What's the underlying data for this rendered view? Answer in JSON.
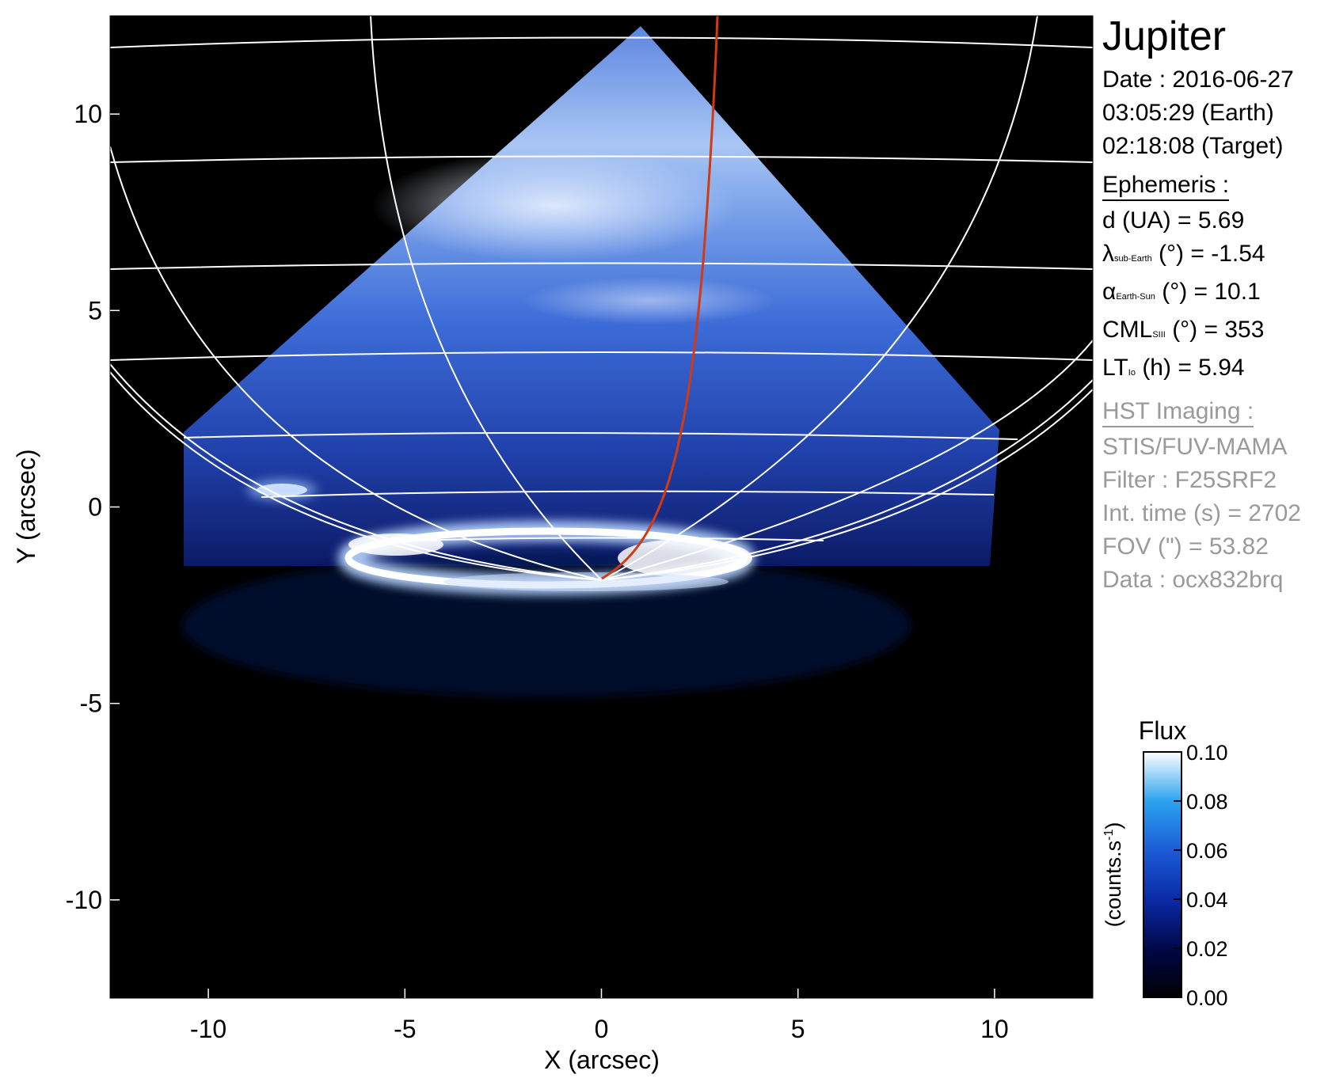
{
  "chart_data": {
    "type": "heatmap",
    "xlabel": "X (arcsec)",
    "ylabel": "Y (arcsec)",
    "xlim": [
      -12.5,
      12.5
    ],
    "ylim": [
      -12.5,
      12.5
    ],
    "xticks": [
      "-10",
      "-5",
      "0",
      "5",
      "10"
    ],
    "yticks": [
      "10",
      "5",
      "0",
      "-5",
      "-10"
    ],
    "xtick_values": [
      -10,
      -5,
      0,
      5,
      10
    ],
    "ytick_values": [
      10,
      5,
      0,
      -5,
      -10
    ],
    "colorbar": {
      "title": "Flux",
      "unit_base": "(counts.s",
      "unit_sup": "-1",
      "unit_end": ")",
      "range": [
        0.0,
        0.1
      ],
      "ticks": [
        "0.10",
        "0.08",
        "0.06",
        "0.04",
        "0.02",
        "0.00"
      ],
      "tick_values": [
        0.1,
        0.08,
        0.06,
        0.04,
        0.02,
        0.0
      ]
    }
  },
  "info": {
    "title": "Jupiter",
    "date": "Date : 2016-06-27",
    "time_earth": "03:05:29 (Earth)",
    "time_target": "02:18:08 (Target)",
    "ephemeris_header": "Ephemeris :",
    "d": "d (UA)    = 5.69",
    "lambda_sym": "λ",
    "lambda_sub": "sub-Earth",
    "lambda_rest": " (°) = -1.54",
    "alpha_sym": "α",
    "alpha_sub": "Earth-Sun",
    "alpha_rest": " (°) = 10.1",
    "cml_sym": "CML",
    "cml_sub": "SIII",
    "cml_rest": " (°) = 353",
    "lt_sym": "LT",
    "lt_sub": "Io",
    "lt_rest": " (h) = 5.94",
    "hst_header": "HST Imaging :",
    "instrument": "STIS/FUV-MAMA",
    "filter": "Filter : F25SRF2",
    "int_time": "Int. time (s) = 2702",
    "fov": "FOV (\") = 53.82",
    "data_id": "Data : ocx832brq"
  }
}
